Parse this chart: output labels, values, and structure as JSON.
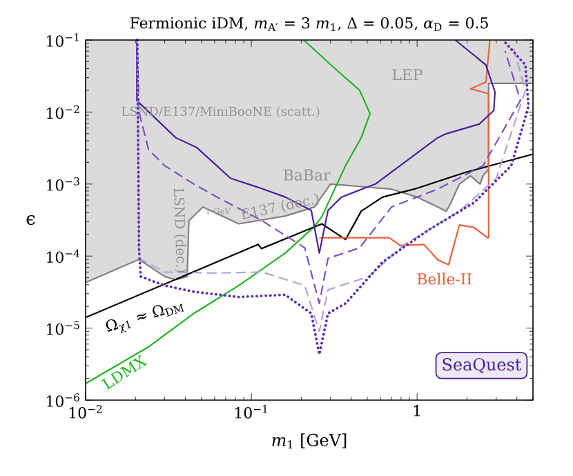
{
  "chart_data": {
    "type": "line",
    "title": "Fermionic iDM, *m*$_{A′}$ = 3 *m*$_{1}$, Δ = 0.05, *α*$_{D}$ = 0.5",
    "xlabel": "*m*$_{1}$ [GeV]",
    "ylabel": "ϵ",
    "log": "xy",
    "xlim": [
      0.01,
      5
    ],
    "ylim": [
      1e-06,
      0.1
    ],
    "xticks": [
      {
        "value": 0.01,
        "label": "10$^{−2}$"
      },
      {
        "value": 0.1,
        "label": "10$^{−1}$"
      },
      1
    ],
    "yticks": [
      {
        "value": 1e-06,
        "label": "10$^{−6}$"
      },
      {
        "value": 1e-05,
        "label": "10$^{−5}$"
      },
      {
        "value": 0.0001,
        "label": "10$^{−4}$"
      },
      {
        "value": 0.001,
        "label": "10$^{−3}$"
      },
      {
        "value": 0.01,
        "label": "10$^{−2}$"
      },
      {
        "value": 0.1,
        "label": "10$^{−1}$"
      }
    ],
    "grid": false,
    "marker": "none",
    "series": [
      {
        "color": "#808080",
        "line_style": "solid",
        "x": [
          0.01,
          0.021,
          0.03,
          0.035,
          0.041,
          0.042,
          0.051,
          0.084,
          0.16,
          0.24,
          0.3,
          0.7,
          1.0,
          1.33,
          1.5,
          1.6,
          1.8,
          2.1,
          2.4,
          2.5,
          2.7,
          2.7,
          5
        ],
        "values": [
          4.3e-05,
          9e-05,
          5.2e-05,
          4.7e-05,
          5.2e-05,
          0.00031,
          0.00048,
          0.00028,
          0.00036,
          0.00048,
          0.001,
          0.00085,
          0.00066,
          0.00048,
          0.00042,
          0.00055,
          0.001,
          0.0013,
          0.001,
          0.0013,
          0.0016,
          0.025,
          0.025
        ],
        "lower": [
          4.3e-05,
          9e-05,
          5.2e-05,
          4.7e-05,
          5.2e-05,
          0.00031,
          0.00048,
          0.00028,
          0.00036,
          0.00048,
          0.001,
          0.00085,
          0.00066,
          0.00048,
          0.00042,
          0.00055,
          0.001,
          0.0013,
          0.001,
          0.0013,
          0.0016,
          0.025,
          0.025
        ],
        "upper": [
          0.1,
          0.1,
          0.1,
          0.1,
          0.1,
          0.1,
          0.1,
          0.1,
          0.1,
          0.1,
          0.1,
          0.1,
          0.1,
          0.1,
          0.1,
          0.1,
          0.1,
          0.1,
          0.1,
          0.1,
          0.1,
          0.1,
          0.1
        ]
      },
      {
        "color": "#22b422",
        "line_style": "solid",
        "x": [
          0.01,
          0.0237,
          0.045,
          0.084,
          0.16,
          0.237,
          0.266,
          0.37,
          0.46,
          0.52,
          0.45,
          0.32,
          0.207
        ],
        "values": [
          1.7e-06,
          5.4e-06,
          1.6e-05,
          3.9e-05,
          0.00011,
          0.00025,
          0.00035,
          0.0018,
          0.0044,
          0.0095,
          0.02,
          0.04,
          0.1
        ]
      },
      {
        "color": "#000000",
        "line_style": "solid",
        "x": [
          0.01,
          0.11,
          0.115,
          0.266,
          0.37,
          0.46,
          0.62,
          0.96,
          1.95,
          5
        ],
        "values": [
          1.4e-05,
          0.000145,
          0.000127,
          0.00028,
          0.00017,
          0.00042,
          0.00066,
          0.00085,
          0.00145,
          0.0026
        ]
      },
      {
        "color": "#e8603c",
        "line_style": "solid",
        "x": [
          0.257,
          0.68,
          0.79,
          1.1,
          1.33,
          1.55,
          1.8,
          2.2,
          2.66,
          2.7,
          2.7,
          2.1,
          2.6,
          2.75
        ],
        "values": [
          0.00018,
          0.00018,
          0.00014,
          0.000145,
          8.9e-05,
          7.6e-05,
          0.00027,
          0.00025,
          0.00018,
          0.00018,
          0.018,
          0.021,
          0.026,
          0.1
        ]
      },
      {
        "color": "#4b1fa0",
        "line_style": "solid",
        "x": [
          0.0204,
          0.0204,
          0.035,
          0.047,
          0.075,
          0.11,
          0.16,
          0.23,
          0.257,
          0.29,
          0.35,
          0.56,
          0.79,
          1.33,
          1.5,
          2.37,
          2.9,
          2.95,
          2.6,
          1.7
        ],
        "values": [
          0.1,
          0.0144,
          0.0044,
          0.0032,
          0.0012,
          0.0009,
          0.00066,
          0.00043,
          0.00011,
          0.00043,
          0.00066,
          0.001,
          0.0018,
          0.0044,
          0.005,
          0.0068,
          0.0105,
          0.019,
          0.045,
          0.1
        ]
      },
      {
        "color": "#7b4fc8",
        "line_style": "dashed",
        "x": [
          0.0205,
          0.021,
          0.024,
          0.03,
          0.045,
          0.062,
          0.116,
          0.21,
          0.257,
          0.29,
          0.45,
          0.7,
          1.33,
          2.5,
          4.2,
          3.4
        ],
        "values": [
          0.1,
          0.01,
          0.003,
          0.0018,
          0.001,
          0.00066,
          0.00031,
          0.00013,
          2.2e-05,
          9.3e-05,
          0.00013,
          0.00048,
          0.00085,
          0.0018,
          0.0145,
          0.07
        ]
      },
      {
        "color": "#b4a0e0",
        "line_style": "dashed",
        "x": [
          0.0205,
          0.021,
          0.03,
          0.062,
          0.116,
          0.21,
          0.257,
          0.29,
          0.51,
          0.84,
          1.8,
          3.0,
          4.5,
          3.8
        ],
        "values": [
          0.1,
          9.3e-05,
          6e-05,
          5.8e-05,
          6e-05,
          3.9e-05,
          9e-06,
          3.4e-05,
          5.2e-05,
          0.000145,
          0.00042,
          0.0012,
          0.02,
          0.08
        ]
      },
      {
        "color": "#5a2bb0",
        "line_style": "dotted",
        "x": [
          0.0205,
          0.021,
          0.0215,
          0.03,
          0.045,
          0.084,
          0.16,
          0.23,
          0.257,
          0.29,
          0.37,
          0.62,
          1.17,
          2.2,
          3.7,
          4.7,
          4.5,
          3.3
        ],
        "values": [
          0.1,
          0.00013,
          5.2e-05,
          3.9e-05,
          3.2e-05,
          2.7e-05,
          2.9e-05,
          1.6e-05,
          4.3e-06,
          1.6e-05,
          2.2e-05,
          8.3e-05,
          0.00023,
          0.00055,
          0.0018,
          0.012,
          0.045,
          0.1
        ]
      }
    ],
    "annotations": [
      "LSND/E137/MiniBooNE (scatt.)",
      "BaBar",
      "LEP",
      "LSND (dec.)",
      "E137 (dec.)",
      "1 GeV",
      "Belle-II",
      "LDMX",
      "Ω$_{χ1}$ ≈ Ω$_{DM}$",
      "SeaQuest"
    ]
  }
}
